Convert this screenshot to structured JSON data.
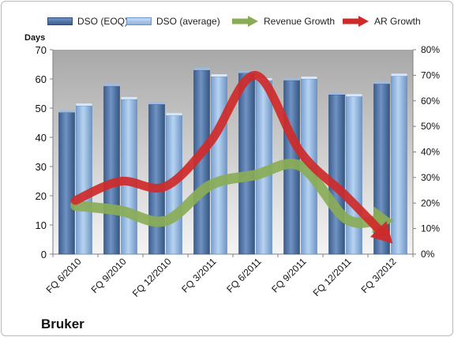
{
  "chart_data": {
    "type": "bar",
    "company": "Bruker",
    "ylabel": "Days",
    "categories": [
      "FQ 6/2010",
      "FQ 9/2010",
      "FQ 12/2010",
      "FQ 3/2011",
      "FQ 6/2011",
      "FQ 9/2011",
      "FQ 12/2011",
      "FQ 3/2012"
    ],
    "series": [
      {
        "name": "DSO (EOQ)",
        "kind": "bar",
        "axis": "left",
        "color": "#4f74a7",
        "values": [
          48.5,
          57.5,
          51.3,
          63.0,
          62.0,
          59.5,
          54.6,
          58.3
        ]
      },
      {
        "name": "DSO (average)",
        "kind": "bar",
        "axis": "left",
        "color": "#8fb2dc",
        "values": [
          50.8,
          53.0,
          47.5,
          60.8,
          59.5,
          60.0,
          54.0,
          61.0
        ]
      },
      {
        "name": "Revenue Growth",
        "kind": "arrow-line",
        "axis": "right",
        "color": "#8aac57",
        "values": [
          0.19,
          0.17,
          0.13,
          0.27,
          0.31,
          0.345,
          0.14,
          0.13
        ]
      },
      {
        "name": "AR Growth",
        "kind": "arrow-line",
        "axis": "right",
        "color": "#cf2a2a",
        "values": [
          0.21,
          0.285,
          0.265,
          0.44,
          0.7,
          0.4,
          0.23,
          0.05
        ]
      }
    ],
    "ylim_left": [
      0,
      70
    ],
    "yticks_left": [
      "0",
      "10",
      "20",
      "30",
      "40",
      "50",
      "60",
      "70"
    ],
    "ylim_right": [
      0,
      0.8
    ],
    "yticks_right": [
      "0%",
      "10%",
      "20%",
      "30%",
      "40%",
      "50%",
      "60%",
      "70%",
      "80%"
    ],
    "grid": false,
    "legend_position": "top"
  }
}
